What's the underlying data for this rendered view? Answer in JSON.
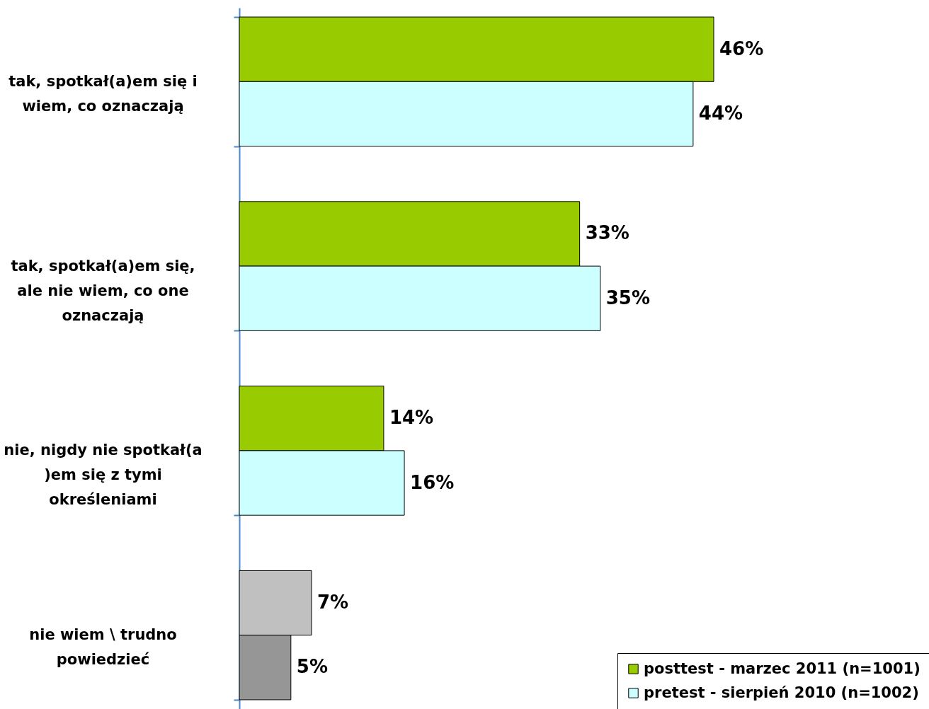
{
  "chart_data": {
    "type": "bar",
    "orientation": "horizontal",
    "categories": [
      "tak, spotkał(a)em się i wiem, co oznaczają",
      "tak, spotkał(a)em się, ale nie wiem, co one oznaczają",
      "nie, nigdy nie spotkał(a )em się z tymi określeniami",
      "nie wiem \\ trudno powiedzieć"
    ],
    "series": [
      {
        "name": "posttest - marzec 2011 (n=1001)",
        "color": "#99cc00",
        "colors": [
          "#99cc00",
          "#99cc00",
          "#99cc00",
          "#c0c0c0"
        ],
        "values": [
          46,
          33,
          14,
          7
        ],
        "value_labels": [
          "46%",
          "33%",
          "14%",
          "7%"
        ]
      },
      {
        "name": "pretest - sierpień 2010 (n=1002)",
        "color": "#ccffff",
        "colors": [
          "#ccffff",
          "#ccffff",
          "#ccffff",
          "#969696"
        ],
        "values": [
          44,
          35,
          16,
          5
        ],
        "value_labels": [
          "44%",
          "35%",
          "16%",
          "5%"
        ]
      }
    ],
    "legend": "bottom right"
  }
}
